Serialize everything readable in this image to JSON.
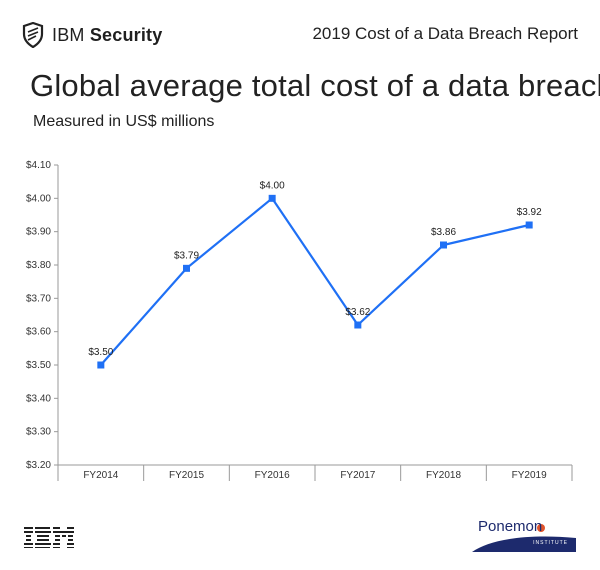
{
  "header": {
    "brand_light": "IBM ",
    "brand_bold": "Security",
    "report_title": "2019 Cost of a Data Breach Report"
  },
  "footer": {
    "left_logo": "ibm-logo",
    "right_logo_text": "Ponemon",
    "right_logo_sub": "INSTITUTE"
  },
  "chart_data": {
    "type": "line",
    "title": "Global average total cost of a data breach",
    "subtitle": "Measured in US$ millions",
    "categories": [
      "FY2014",
      "FY2015",
      "FY2016",
      "FY2017",
      "FY2018",
      "FY2019"
    ],
    "series": [
      {
        "values": [
          3.5,
          3.79,
          4.0,
          3.62,
          3.86,
          3.92
        ]
      }
    ],
    "data_labels": [
      "$3.50",
      "$3.79",
      "$4.00",
      "$3.62",
      "$3.86",
      "$3.92"
    ],
    "ylim": [
      3.2,
      4.1
    ],
    "y_ticks": [
      "$3.20",
      "$3.30",
      "$3.40",
      "$3.50",
      "$3.60",
      "$3.70",
      "$3.80",
      "$3.90",
      "$4.00",
      "$4.10"
    ],
    "grid": false,
    "legend": "none",
    "line_color": "#1f70f5",
    "marker_color": "#1f70f5",
    "axis_color": "#9a9a9a"
  }
}
